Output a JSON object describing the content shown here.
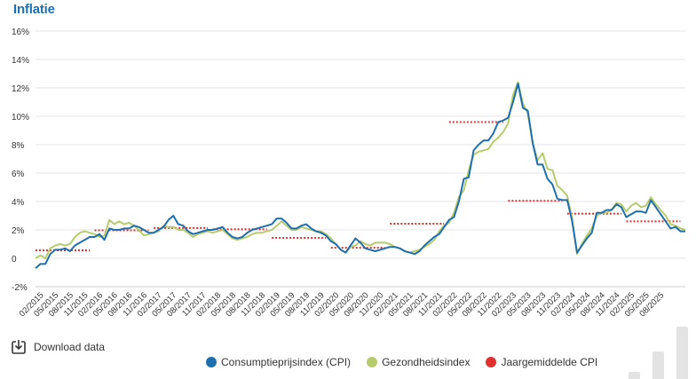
{
  "chart_data": {
    "type": "line",
    "title": "Inflatie",
    "ylim": [
      -2,
      16
    ],
    "yticks": [
      "-2%",
      "0",
      "2%",
      "4%",
      "6%",
      "8%",
      "10%",
      "12%",
      "14%",
      "16%"
    ],
    "ytick_values": [
      -2,
      0,
      2,
      4,
      6,
      8,
      10,
      12,
      14,
      16
    ],
    "grid": true,
    "legend_position": "bottom",
    "xticks": [
      "02/2015",
      "05/2015",
      "08/2015",
      "11/2015",
      "02/2016",
      "05/2016",
      "08/2016",
      "11/2016",
      "02/2017",
      "05/2017",
      "08/2017",
      "11/2017",
      "02/2018",
      "05/2018",
      "08/2018",
      "11/2018",
      "02/2019",
      "05/2019",
      "08/2019",
      "11/2019",
      "02/2020",
      "05/2020",
      "08/2020",
      "11/2020",
      "02/2021",
      "05/2021",
      "08/2021",
      "11/2021",
      "02/2022",
      "05/2022",
      "08/2022",
      "11/2022",
      "02/2023",
      "05/2023",
      "08/2023",
      "11/2023",
      "02/2024",
      "05/2024",
      "08/2024",
      "11/2024",
      "02/2025",
      "05/2025",
      "08/2025"
    ],
    "series": [
      {
        "name": "Consumptieprijsindex (CPI)",
        "color": "#1f6fae",
        "values": [
          -0.7,
          -0.4,
          -0.4,
          0.3,
          0.6,
          0.6,
          0.7,
          0.5,
          0.9,
          1.1,
          1.3,
          1.5,
          1.5,
          1.7,
          1.3,
          2.1,
          2.0,
          2.0,
          2.1,
          2.1,
          2.3,
          2.2,
          2.0,
          1.8,
          1.8,
          2.0,
          2.2,
          2.7,
          3.0,
          2.4,
          2.3,
          1.9,
          1.7,
          1.8,
          1.9,
          2.0,
          2.0,
          2.1,
          2.2,
          1.8,
          1.5,
          1.4,
          1.5,
          1.8,
          2.0,
          2.1,
          2.2,
          2.3,
          2.4,
          2.8,
          2.8,
          2.5,
          2.1,
          2.1,
          2.3,
          2.4,
          2.1,
          1.9,
          1.8,
          1.6,
          1.2,
          1.0,
          0.6,
          0.4,
          0.9,
          1.4,
          1.1,
          0.7,
          0.6,
          0.5,
          0.6,
          0.7,
          0.8,
          0.8,
          0.7,
          0.5,
          0.4,
          0.3,
          0.5,
          0.9,
          1.2,
          1.5,
          1.7,
          2.2,
          2.7,
          2.9,
          4.0,
          5.6,
          5.7,
          7.6,
          8.0,
          8.3,
          8.3,
          8.8,
          9.6,
          9.7,
          9.9,
          11.0,
          12.3,
          10.6,
          10.4,
          8.1,
          6.6,
          6.6,
          5.6,
          5.2,
          4.2,
          4.1,
          4.1,
          2.6,
          0.4,
          0.9,
          1.4,
          1.8,
          3.2,
          3.2,
          3.4,
          3.4,
          3.8,
          3.6,
          2.9,
          3.1,
          3.3,
          3.3,
          3.2,
          4.1,
          3.6,
          3.1,
          2.6,
          2.1,
          2.2,
          1.9,
          1.9
        ]
      },
      {
        "name": "Gezondheidsindex",
        "color": "#b6cc6c",
        "values": [
          0.0,
          0.2,
          0.0,
          0.7,
          0.9,
          1.0,
          0.9,
          1.0,
          1.5,
          1.8,
          1.9,
          1.8,
          1.7,
          1.5,
          1.6,
          2.7,
          2.4,
          2.6,
          2.4,
          2.5,
          2.3,
          2.0,
          1.6,
          1.7,
          1.8,
          1.9,
          2.3,
          2.2,
          2.2,
          2.0,
          2.0,
          1.8,
          1.5,
          1.7,
          1.8,
          1.9,
          1.8,
          1.9,
          2.0,
          1.7,
          1.4,
          1.3,
          1.4,
          1.5,
          1.7,
          1.8,
          1.8,
          1.9,
          2.0,
          2.3,
          2.6,
          2.3,
          2.0,
          2.0,
          2.2,
          2.1,
          2.0,
          1.9,
          1.9,
          1.7,
          1.4,
          1.0,
          0.6,
          0.4,
          0.8,
          0.9,
          1.2,
          1.0,
          0.9,
          1.1,
          1.1,
          1.1,
          1.0,
          0.8,
          0.7,
          0.5,
          0.4,
          0.5,
          0.6,
          0.8,
          1.0,
          1.3,
          1.9,
          2.3,
          2.5,
          3.2,
          4.3,
          4.8,
          6.2,
          7.3,
          7.5,
          7.6,
          7.7,
          8.2,
          8.5,
          8.9,
          9.5,
          11.5,
          12.4,
          10.9,
          10.2,
          8.1,
          6.9,
          7.4,
          6.3,
          6.2,
          5.1,
          4.8,
          4.4,
          2.8,
          0.3,
          1.0,
          1.6,
          2.1,
          3.0,
          3.2,
          3.2,
          3.4,
          3.9,
          3.8,
          3.3,
          3.7,
          3.9,
          3.6,
          3.7,
          4.3,
          3.8,
          3.4,
          3.0,
          2.4,
          2.3,
          2.1,
          2.0
        ]
      },
      {
        "name": "Jaargemiddelde CPI",
        "color": "#e03030",
        "segments": [
          {
            "year": 2015,
            "value": 0.56
          },
          {
            "year": 2016,
            "value": 1.97
          },
          {
            "year": 2017,
            "value": 2.13
          },
          {
            "year": 2018,
            "value": 2.05
          },
          {
            "year": 2019,
            "value": 1.44
          },
          {
            "year": 2020,
            "value": 0.74
          },
          {
            "year": 2021,
            "value": 2.44
          },
          {
            "year": 2022,
            "value": 9.59
          },
          {
            "year": 2023,
            "value": 4.05
          },
          {
            "year": 2024,
            "value": 3.14
          },
          {
            "year": 2025,
            "value": 2.6
          }
        ]
      }
    ]
  },
  "page": {
    "title": "Inflatie",
    "download_label": "Download data"
  },
  "legend": [
    {
      "label": "Consumptieprijsindex (CPI)",
      "color": "#1f6fae"
    },
    {
      "label": "Gezondheidsindex",
      "color": "#b6cc6c"
    },
    {
      "label": "Jaargemiddelde CPI",
      "color": "#e03030"
    }
  ]
}
